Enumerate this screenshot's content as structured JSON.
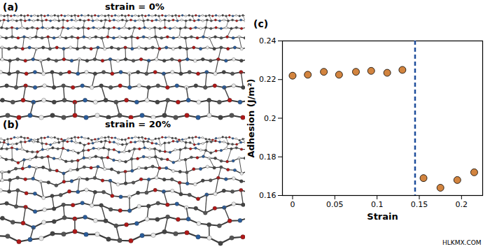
{
  "chart_data": {
    "type": "scatter",
    "title": "(c)",
    "x_label": "Strain",
    "y_label": "Adhesion (J/m²)",
    "x": [
      0,
      0.018,
      0.037,
      0.055,
      0.075,
      0.093,
      0.112,
      0.13,
      0.155,
      0.175,
      0.195,
      0.215
    ],
    "values": [
      0.222,
      0.2225,
      0.224,
      0.2225,
      0.224,
      0.2245,
      0.2235,
      0.225,
      0.169,
      0.164,
      0.168,
      0.172
    ],
    "color": "#d2843f",
    "marker": "circle",
    "xlim": [
      -0.012,
      0.225
    ],
    "xticks": [
      0,
      0.05,
      0.1,
      0.15,
      0.2
    ],
    "ylim": [
      0.16,
      0.24
    ],
    "yticks": [
      0.16,
      0.18,
      0.2,
      0.22,
      0.24
    ],
    "vline": {
      "x": 0.145,
      "color": "#1f4e9c",
      "line_style": "dashed"
    }
  },
  "panels": [
    {
      "label": "(a)",
      "title": "strain = 0%"
    },
    {
      "label": "(b)",
      "title": "strain = 20%"
    }
  ],
  "watermark": "HLKMX.COM"
}
